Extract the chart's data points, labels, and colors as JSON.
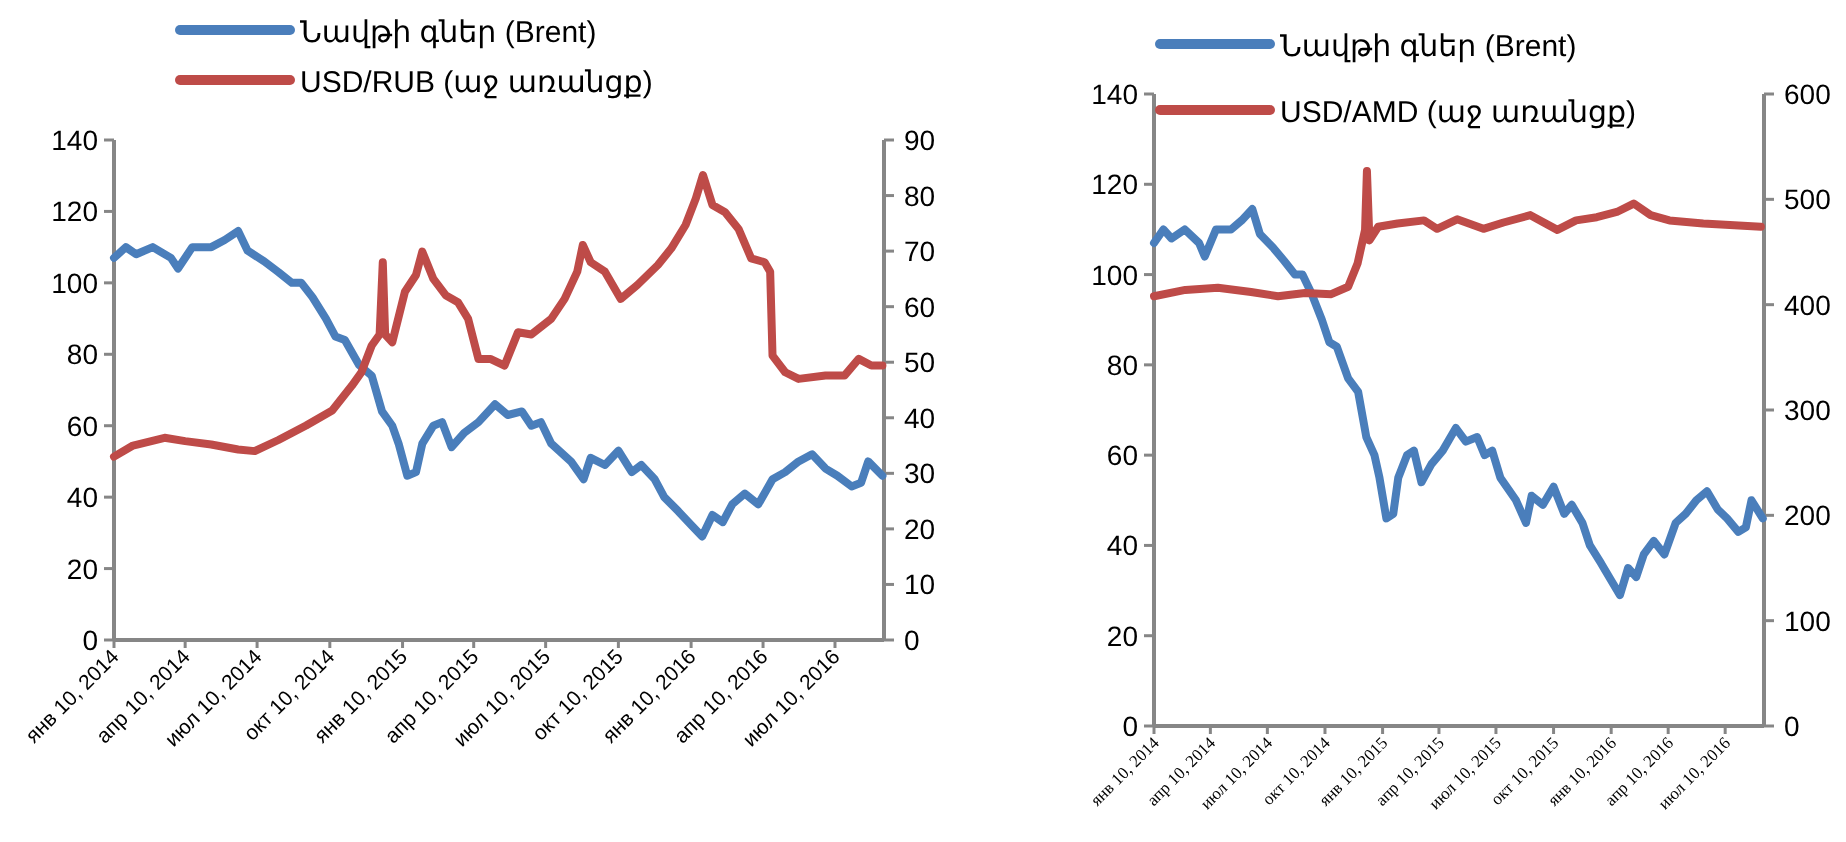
{
  "chart_data": [
    {
      "type": "line",
      "legend": "top",
      "xlim": [
        "2014-01-10",
        "2016-09-10"
      ],
      "xticks": [
        {
          "value": "2014-01-10",
          "label": "янв 10, 2014"
        },
        {
          "value": "2014-04-10",
          "label": "апр 10, 2014"
        },
        {
          "value": "2014-07-10",
          "label": "июл 10, 2014"
        },
        {
          "value": "2014-10-10",
          "label": "окт 10, 2014"
        },
        {
          "value": "2015-01-10",
          "label": "янв 10, 2015"
        },
        {
          "value": "2015-04-10",
          "label": "апр 10, 2015"
        },
        {
          "value": "2015-07-10",
          "label": "июл 10, 2015"
        },
        {
          "value": "2015-10-10",
          "label": "окт 10, 2015"
        },
        {
          "value": "2016-01-10",
          "label": "янв 10, 2016"
        },
        {
          "value": "2016-04-10",
          "label": "апр 10, 2016"
        },
        {
          "value": "2016-07-10",
          "label": "июл 10, 2016"
        }
      ],
      "ylim": [
        0,
        140
      ],
      "yticks": [
        0,
        20,
        40,
        60,
        80,
        100,
        120,
        140
      ],
      "y2lim": [
        0,
        90
      ],
      "y2ticks": [
        0,
        10,
        20,
        30,
        40,
        50,
        60,
        70,
        80,
        90
      ],
      "series": [
        {
          "name": "Նավթի գներ (Brent)",
          "color": "#4a7ebb",
          "x": [
            "2014-01-10",
            "2014-01-25",
            "2014-02-07",
            "2014-02-28",
            "2014-03-23",
            "2014-04-01",
            "2014-04-19",
            "2014-05-13",
            "2014-05-30",
            "2014-06-16",
            "2014-06-28",
            "2014-07-19",
            "2014-08-06",
            "2014-08-23",
            "2014-09-04",
            "2014-09-18",
            "2014-10-05",
            "2014-10-17",
            "2014-10-29",
            "2014-11-16",
            "2014-12-02",
            "2014-12-15",
            "2014-12-28",
            "2015-01-05",
            "2015-01-16",
            "2015-01-27",
            "2015-02-04",
            "2015-02-18",
            "2015-03-01",
            "2015-03-13",
            "2015-03-29",
            "2015-04-16",
            "2015-05-07",
            "2015-05-23",
            "2015-06-10",
            "2015-06-22",
            "2015-07-04",
            "2015-07-17",
            "2015-08-11",
            "2015-08-27",
            "2015-09-05",
            "2015-09-23",
            "2015-10-10",
            "2015-10-27",
            "2015-11-08",
            "2015-11-25",
            "2015-12-07",
            "2015-12-25",
            "2016-01-11",
            "2016-01-24",
            "2016-02-06",
            "2016-02-19",
            "2016-03-02",
            "2016-03-18",
            "2016-04-04",
            "2016-04-22",
            "2016-05-08",
            "2016-05-25",
            "2016-06-11",
            "2016-06-28",
            "2016-07-13",
            "2016-07-31",
            "2016-08-12",
            "2016-08-21",
            "2016-09-08"
          ],
          "values": [
            107,
            110,
            108,
            110,
            107,
            104,
            110,
            110,
            112,
            114.5,
            109,
            106,
            103,
            100,
            100,
            96,
            90,
            85,
            84,
            77,
            74,
            64,
            60,
            55,
            46,
            47,
            55,
            60,
            61,
            54,
            58,
            61,
            66,
            63,
            64,
            60,
            61,
            55,
            50,
            45,
            51,
            49,
            53,
            47,
            49,
            45,
            40,
            36,
            32,
            29,
            35,
            33,
            38,
            41,
            38,
            45,
            47,
            50,
            52,
            48,
            46,
            43,
            44,
            50,
            46
          ]
        },
        {
          "name": "USD/RUB (աջ առանցք)",
          "color": "#be4b48",
          "axis": "y2",
          "x": [
            "2014-01-10",
            "2014-02-03",
            "2014-03-15",
            "2014-04-10",
            "2014-05-13",
            "2014-06-16",
            "2014-07-07",
            "2014-08-06",
            "2014-09-10",
            "2014-10-13",
            "2014-11-07",
            "2014-11-19",
            "2014-12-02",
            "2014-12-12",
            "2014-12-16",
            "2014-12-19",
            "2014-12-28",
            "2015-01-13",
            "2015-01-27",
            "2015-02-04",
            "2015-02-18",
            "2015-03-06",
            "2015-03-21",
            "2015-04-03",
            "2015-04-16",
            "2015-05-01",
            "2015-05-19",
            "2015-06-05",
            "2015-06-22",
            "2015-07-17",
            "2015-08-03",
            "2015-08-19",
            "2015-08-26",
            "2015-09-05",
            "2015-09-23",
            "2015-10-13",
            "2015-11-03",
            "2015-11-29",
            "2015-12-16",
            "2016-01-03",
            "2016-01-16",
            "2016-01-25",
            "2016-02-06",
            "2016-02-22",
            "2016-03-10",
            "2016-03-26",
            "2016-04-12",
            "2016-04-19",
            "2016-04-22",
            "2016-05-08",
            "2016-05-25",
            "2016-06-28",
            "2016-07-22",
            "2016-08-09",
            "2016-08-25",
            "2016-09-08"
          ],
          "values": [
            33,
            35,
            36.4,
            35.8,
            35.2,
            34.3,
            34,
            36,
            38.6,
            41.3,
            45.8,
            48.2,
            53,
            55,
            68,
            55,
            53.6,
            62.7,
            65.7,
            69.9,
            65,
            62,
            60.8,
            57.8,
            50.6,
            50.6,
            49.4,
            55.4,
            55,
            57.8,
            61.4,
            66.3,
            71.1,
            68,
            66.3,
            61.4,
            63.9,
            67.5,
            70.5,
            74.7,
            79.5,
            83.7,
            78.3,
            77,
            74,
            68.7,
            68,
            66.3,
            51.2,
            48.2,
            47,
            47.6,
            47.6,
            50.6,
            49.4,
            49.4
          ]
        }
      ]
    },
    {
      "type": "line",
      "legend": "top",
      "xlim": [
        "2014-01-10",
        "2016-09-10"
      ],
      "xticks": [
        {
          "value": "2014-01-10",
          "label": "янв 10, 2014"
        },
        {
          "value": "2014-04-10",
          "label": "апр 10, 2014"
        },
        {
          "value": "2014-07-10",
          "label": "июл 10, 2014"
        },
        {
          "value": "2014-10-10",
          "label": "окт 10, 2014"
        },
        {
          "value": "2015-01-10",
          "label": "янв 10, 2015"
        },
        {
          "value": "2015-04-10",
          "label": "апр 10, 2015"
        },
        {
          "value": "2015-07-10",
          "label": "июл 10, 2015"
        },
        {
          "value": "2015-10-10",
          "label": "окт 10, 2015"
        },
        {
          "value": "2016-01-10",
          "label": "янв 10, 2016"
        },
        {
          "value": "2016-04-10",
          "label": "апр 10, 2016"
        },
        {
          "value": "2016-07-10",
          "label": "июл 10, 2016"
        }
      ],
      "ylim": [
        0,
        140
      ],
      "yticks": [
        0,
        20,
        40,
        60,
        80,
        100,
        120,
        140
      ],
      "y2lim": [
        0,
        600
      ],
      "y2ticks": [
        0,
        100,
        200,
        300,
        400,
        500,
        600
      ],
      "series": [
        {
          "name": "Նավթի գներ (Brent)",
          "color": "#4a7ebb",
          "x": [
            "2014-01-10",
            "2014-01-25",
            "2014-02-07",
            "2014-02-28",
            "2014-03-23",
            "2014-04-01",
            "2014-04-19",
            "2014-05-13",
            "2014-05-30",
            "2014-06-16",
            "2014-06-28",
            "2014-07-19",
            "2014-08-06",
            "2014-08-23",
            "2014-09-04",
            "2014-09-18",
            "2014-10-05",
            "2014-10-17",
            "2014-10-29",
            "2014-11-16",
            "2014-12-02",
            "2014-12-15",
            "2014-12-28",
            "2015-01-05",
            "2015-01-16",
            "2015-01-27",
            "2015-02-04",
            "2015-02-18",
            "2015-03-01",
            "2015-03-13",
            "2015-03-29",
            "2015-04-16",
            "2015-05-07",
            "2015-05-23",
            "2015-06-10",
            "2015-06-22",
            "2015-07-04",
            "2015-07-17",
            "2015-08-11",
            "2015-08-27",
            "2015-09-05",
            "2015-09-23",
            "2015-10-10",
            "2015-10-27",
            "2015-11-08",
            "2015-11-25",
            "2015-12-07",
            "2015-12-25",
            "2016-01-11",
            "2016-01-24",
            "2016-02-06",
            "2016-02-19",
            "2016-03-02",
            "2016-03-18",
            "2016-04-04",
            "2016-04-22",
            "2016-05-08",
            "2016-05-25",
            "2016-06-11",
            "2016-06-28",
            "2016-07-13",
            "2016-07-31",
            "2016-08-12",
            "2016-08-21",
            "2016-09-08"
          ],
          "values": [
            107,
            110,
            108,
            110,
            107,
            104,
            110,
            110,
            112,
            114.5,
            109,
            106,
            103,
            100,
            100,
            96,
            90,
            85,
            84,
            77,
            74,
            64,
            60,
            55,
            46,
            47,
            55,
            60,
            61,
            54,
            58,
            61,
            66,
            63,
            64,
            60,
            61,
            55,
            50,
            45,
            51,
            49,
            53,
            47,
            49,
            45,
            40,
            36,
            32,
            29,
            35,
            33,
            38,
            41,
            38,
            45,
            47,
            50,
            52,
            48,
            46,
            43,
            44,
            50,
            46
          ]
        },
        {
          "name": "USD/AMD (աջ առանցք)",
          "color": "#be4b48",
          "axis": "y2",
          "x": [
            "2014-01-10",
            "2014-03-01",
            "2014-04-22",
            "2014-06-14",
            "2014-07-27",
            "2014-09-08",
            "2014-10-20",
            "2014-11-16",
            "2014-12-01",
            "2014-12-13",
            "2014-12-16",
            "2014-12-20",
            "2015-01-03",
            "2015-02-03",
            "2015-03-17",
            "2015-04-07",
            "2015-05-09",
            "2015-06-20",
            "2015-07-22",
            "2015-09-03",
            "2015-10-16",
            "2015-11-15",
            "2015-12-18",
            "2016-01-19",
            "2016-02-15",
            "2016-03-13",
            "2016-04-12",
            "2016-06-05",
            "2016-09-05"
          ],
          "values": [
            408,
            414,
            416,
            412,
            408,
            411,
            410,
            417,
            439,
            471,
            527,
            461,
            474,
            477,
            480,
            472,
            481,
            472,
            478,
            485,
            471,
            480,
            483,
            488,
            496,
            485,
            480,
            477,
            474
          ]
        }
      ]
    }
  ]
}
